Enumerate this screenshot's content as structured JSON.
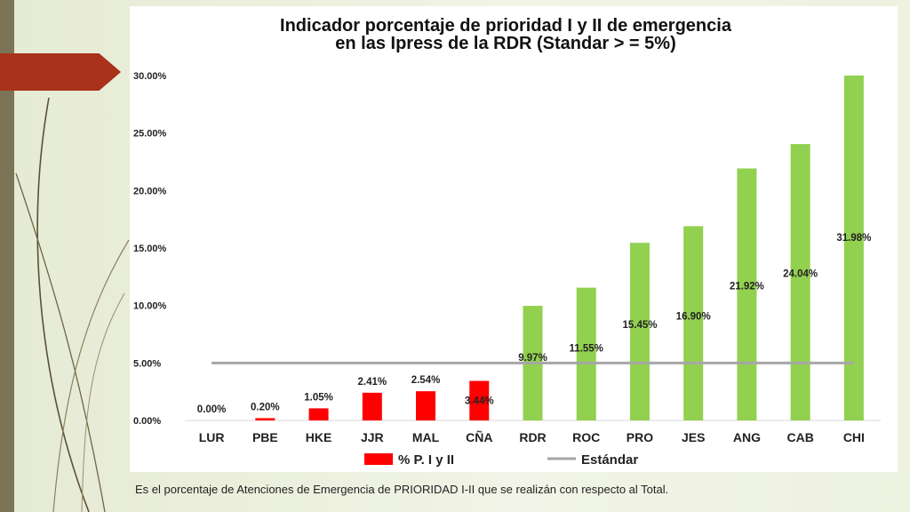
{
  "chart_data": {
    "type": "bar",
    "title_lines": [
      "Indicador porcentaje de prioridad I y II de emergencia",
      "en las Ipress de la RDR (Standar > = 5%)"
    ],
    "categories": [
      "LUR",
      "PBE",
      "HKE",
      "JJR",
      "MAL",
      "CÑA",
      "RDR",
      "ROC",
      "PRO",
      "JES",
      "ANG",
      "CAB",
      "CHI"
    ],
    "values": [
      0.0,
      0.2,
      1.05,
      2.41,
      2.54,
      3.44,
      9.97,
      11.55,
      15.45,
      16.9,
      21.92,
      24.04,
      31.98
    ],
    "data_labels": [
      "0.00%",
      "0.20%",
      "1.05%",
      "2.41%",
      "2.54%",
      "3.44%",
      "9.97%",
      "11.55%",
      "15.45%",
      "16.90%",
      "21.92%",
      "24.04%",
      "31.98%"
    ],
    "bar_colors": [
      "#ff0000",
      "#ff0000",
      "#ff0000",
      "#ff0000",
      "#ff0000",
      "#ff0000",
      "#92d050",
      "#92d050",
      "#92d050",
      "#92d050",
      "#92d050",
      "#92d050",
      "#92d050"
    ],
    "ylim": [
      0,
      30
    ],
    "y_ticks": [
      0,
      5,
      10,
      15,
      20,
      25,
      30
    ],
    "y_tick_labels": [
      "0.00%",
      "5.00%",
      "10.00%",
      "15.00%",
      "20.00%",
      "25.00%",
      "30.00%"
    ],
    "standard_line": {
      "name": "Estándar",
      "value": 5,
      "color": "#a6a6a6"
    },
    "legend": [
      {
        "name": "% P. I y II",
        "color": "#ff0000",
        "kind": "box"
      },
      {
        "name": "Estándar",
        "color": "#a6a6a6",
        "kind": "line"
      }
    ],
    "grid": false
  },
  "caption": "Es el porcentaje de Atenciones de Emergencia de PRIORIDAD I-II que se realizán con respecto al Total."
}
